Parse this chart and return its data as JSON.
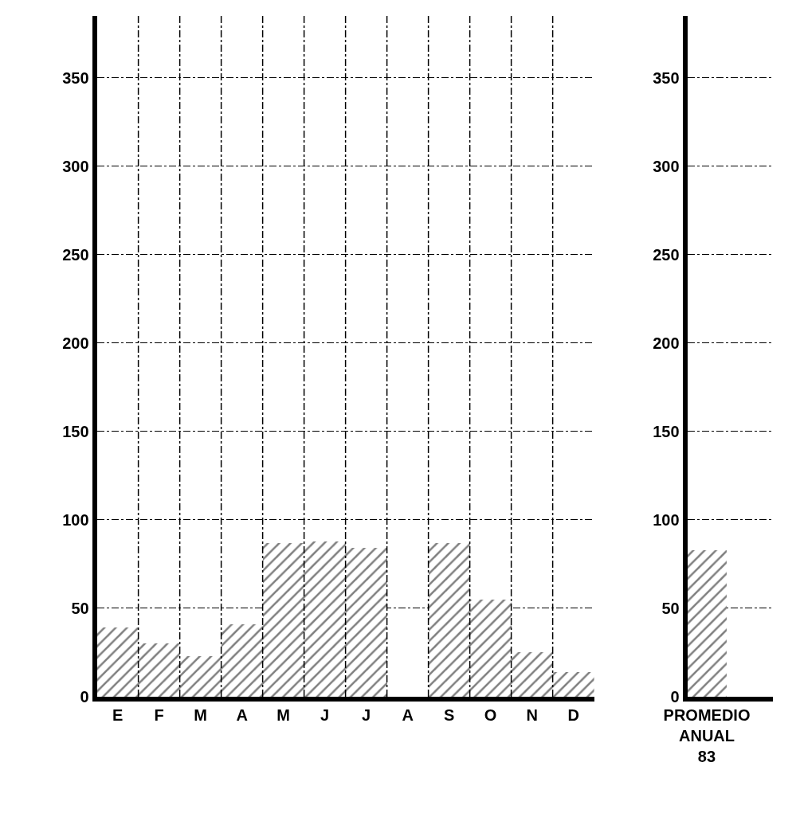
{
  "chart_data": [
    {
      "type": "bar",
      "categories": [
        "E",
        "F",
        "M",
        "A",
        "M",
        "J",
        "J",
        "A",
        "S",
        "O",
        "N",
        "D"
      ],
      "values": [
        39,
        30,
        23,
        41,
        87,
        88,
        84,
        0,
        87,
        55,
        25,
        14
      ],
      "color": "#000000",
      "ylim": [
        0,
        385
      ],
      "yticks": [
        0,
        50,
        100,
        150,
        200,
        250,
        300,
        350
      ],
      "grid": true
    },
    {
      "type": "bar",
      "categories": [
        "PROMEDIO ANUAL 83"
      ],
      "values": [
        83
      ],
      "color": "#000000",
      "ylim": [
        0,
        385
      ],
      "yticks": [
        0,
        50,
        100,
        150,
        200,
        250,
        300,
        350
      ],
      "grid": true
    }
  ]
}
